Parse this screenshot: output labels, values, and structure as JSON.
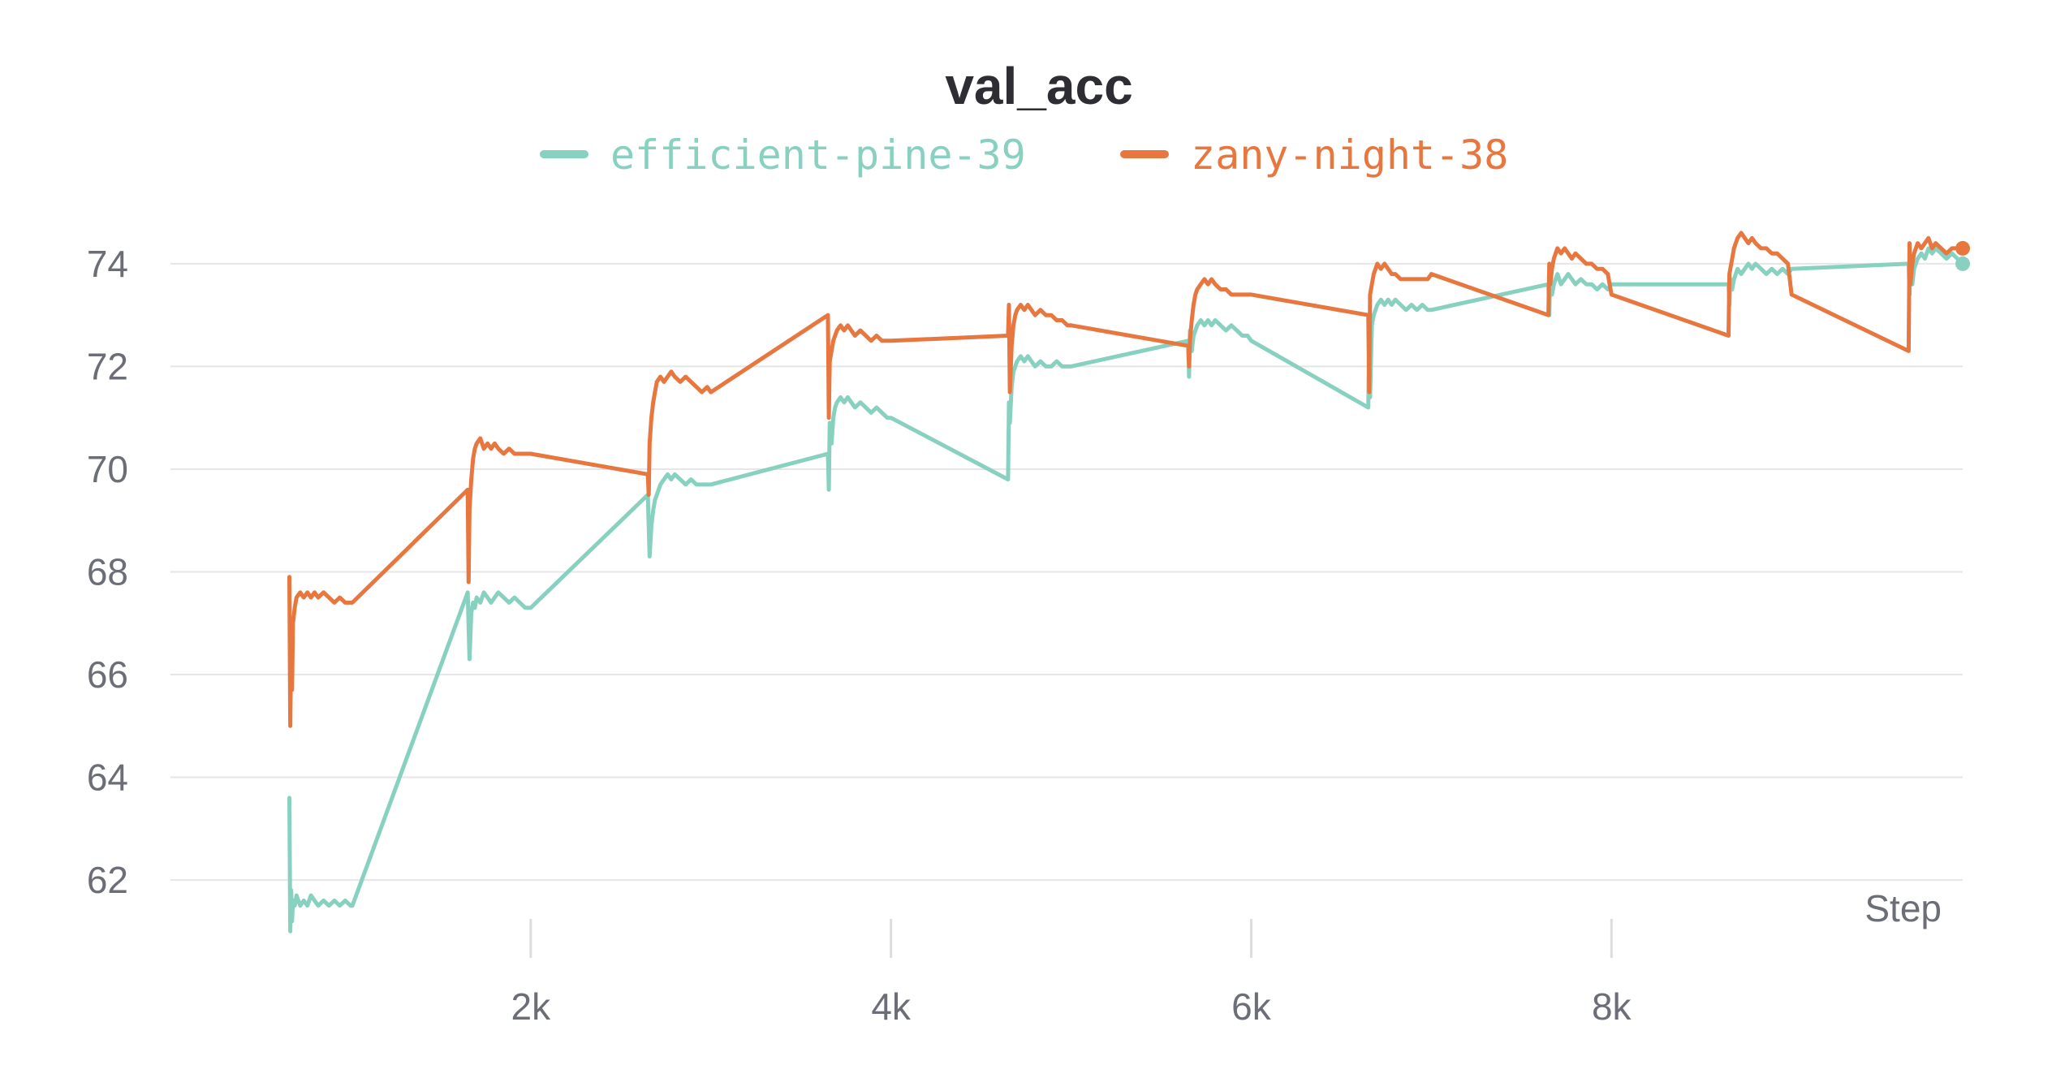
{
  "chart_data": {
    "type": "line",
    "title": "val_acc",
    "xlabel": "Step",
    "ylabel": "",
    "xlim": [
      0,
      9950
    ],
    "ylim": [
      60.8,
      75.5
    ],
    "yticks": [
      62,
      64,
      66,
      68,
      70,
      72,
      74
    ],
    "ytick_labels": [
      "62",
      "64",
      "66",
      "68",
      "70",
      "72",
      "74"
    ],
    "xticks": [
      2000,
      4000,
      6000,
      8000
    ],
    "xtick_labels": [
      "2k",
      "4k",
      "6k",
      "8k"
    ],
    "grid": true,
    "legend_position": "top",
    "series": [
      {
        "name": "efficient-pine-39",
        "color": "#88d1c0",
        "x": [
          660,
          665,
          670,
          675,
          680,
          690,
          700,
          720,
          740,
          760,
          780,
          800,
          820,
          850,
          880,
          910,
          940,
          970,
          1000,
          1010,
          1650,
          1660,
          1670,
          1680,
          1690,
          1700,
          1720,
          1740,
          1760,
          1780,
          1800,
          1820,
          1850,
          1880,
          1910,
          1940,
          1970,
          2000,
          2650,
          2660,
          2670,
          2680,
          2690,
          2700,
          2720,
          2740,
          2760,
          2780,
          2800,
          2830,
          2860,
          2890,
          2920,
          2950,
          2980,
          3000,
          3650,
          3655,
          3660,
          3670,
          3680,
          3690,
          3700,
          3720,
          3740,
          3760,
          3780,
          3800,
          3830,
          3860,
          3890,
          3920,
          3950,
          3980,
          4000,
          4650,
          4655,
          4660,
          4670,
          4680,
          4690,
          4700,
          4720,
          4740,
          4760,
          4780,
          4800,
          4830,
          4860,
          4890,
          4920,
          4950,
          4980,
          5000,
          5650,
          5655,
          5660,
          5670,
          5680,
          5690,
          5700,
          5720,
          5740,
          5760,
          5780,
          5800,
          5830,
          5860,
          5890,
          5920,
          5950,
          5980,
          6000,
          6650,
          6655,
          6660,
          6670,
          6680,
          6690,
          6700,
          6720,
          6740,
          6760,
          6780,
          6800,
          6830,
          6860,
          6890,
          6920,
          6950,
          6980,
          7000,
          7650,
          7655,
          7660,
          7670,
          7680,
          7690,
          7700,
          7720,
          7740,
          7760,
          7780,
          7800,
          7830,
          7860,
          7890,
          7920,
          7950,
          7980,
          8000,
          8650,
          8655,
          8660,
          8670,
          8680,
          8690,
          8700,
          8720,
          8740,
          8760,
          8780,
          8800,
          8830,
          8860,
          8890,
          8920,
          8950,
          8980,
          9000,
          9650,
          9655,
          9660,
          9670,
          9680,
          9690,
          9700,
          9720,
          9740,
          9760,
          9780,
          9800,
          9830,
          9860,
          9890,
          9920,
          9950
        ],
        "y": [
          63.6,
          61.0,
          61.8,
          61.2,
          61.6,
          61.5,
          61.7,
          61.5,
          61.6,
          61.5,
          61.7,
          61.6,
          61.5,
          61.6,
          61.5,
          61.6,
          61.5,
          61.6,
          61.5,
          61.5,
          67.6,
          66.3,
          67.2,
          67.4,
          67.3,
          67.5,
          67.4,
          67.6,
          67.5,
          67.4,
          67.5,
          67.6,
          67.5,
          67.4,
          67.5,
          67.4,
          67.3,
          67.3,
          69.5,
          68.3,
          68.9,
          69.2,
          69.4,
          69.5,
          69.7,
          69.8,
          69.9,
          69.8,
          69.9,
          69.8,
          69.7,
          69.8,
          69.7,
          69.7,
          69.7,
          69.7,
          70.3,
          69.6,
          70.9,
          70.5,
          71.0,
          71.2,
          71.3,
          71.4,
          71.3,
          71.4,
          71.3,
          71.2,
          71.3,
          71.2,
          71.1,
          71.2,
          71.1,
          71.0,
          71.0,
          69.8,
          71.3,
          70.9,
          71.6,
          71.9,
          72.0,
          72.1,
          72.2,
          72.1,
          72.2,
          72.1,
          72.0,
          72.1,
          72.0,
          72.0,
          72.1,
          72.0,
          72.0,
          72.0,
          72.5,
          71.8,
          72.7,
          72.3,
          72.6,
          72.7,
          72.8,
          72.9,
          72.8,
          72.9,
          72.8,
          72.9,
          72.8,
          72.7,
          72.8,
          72.7,
          72.6,
          72.6,
          72.5,
          71.2,
          72.7,
          71.4,
          72.8,
          73.0,
          73.1,
          73.2,
          73.3,
          73.2,
          73.3,
          73.2,
          73.3,
          73.2,
          73.1,
          73.2,
          73.1,
          73.2,
          73.1,
          73.1,
          73.6,
          73.0,
          73.9,
          73.4,
          73.6,
          73.7,
          73.8,
          73.6,
          73.7,
          73.8,
          73.7,
          73.6,
          73.7,
          73.6,
          73.6,
          73.5,
          73.6,
          73.5,
          73.6,
          73.6,
          73.2,
          73.7,
          73.5,
          73.7,
          73.8,
          73.9,
          73.8,
          73.9,
          74.0,
          73.9,
          74.0,
          73.9,
          73.8,
          73.9,
          73.8,
          73.9,
          73.8,
          73.9,
          74.0,
          73.4,
          74.1,
          73.6,
          73.9,
          74.0,
          74.1,
          74.2,
          74.1,
          74.3,
          74.2,
          74.3,
          74.2,
          74.1,
          74.2,
          74.1,
          74.0
        ]
      },
      {
        "name": "zany-night-38",
        "color": "#e8773f",
        "x": [
          660,
          665,
          670,
          675,
          680,
          690,
          700,
          720,
          740,
          760,
          780,
          800,
          820,
          850,
          880,
          910,
          940,
          970,
          1000,
          1010,
          1650,
          1655,
          1660,
          1670,
          1680,
          1690,
          1700,
          1720,
          1740,
          1760,
          1780,
          1800,
          1820,
          1850,
          1880,
          1910,
          1940,
          1970,
          2000,
          2650,
          2655,
          2660,
          2670,
          2680,
          2690,
          2700,
          2720,
          2740,
          2760,
          2780,
          2800,
          2830,
          2860,
          2890,
          2920,
          2950,
          2980,
          3000,
          3650,
          3655,
          3660,
          3670,
          3680,
          3690,
          3700,
          3720,
          3740,
          3760,
          3780,
          3800,
          3830,
          3860,
          3890,
          3920,
          3950,
          3980,
          4000,
          4650,
          4655,
          4660,
          4670,
          4680,
          4690,
          4700,
          4720,
          4740,
          4760,
          4780,
          4800,
          4830,
          4860,
          4890,
          4920,
          4950,
          4980,
          5000,
          5650,
          5655,
          5660,
          5670,
          5680,
          5690,
          5700,
          5720,
          5740,
          5760,
          5780,
          5800,
          5830,
          5860,
          5890,
          5920,
          5950,
          5980,
          6000,
          6650,
          6655,
          6660,
          6670,
          6680,
          6690,
          6700,
          6720,
          6740,
          6760,
          6780,
          6800,
          6830,
          6860,
          6890,
          6920,
          6950,
          6980,
          7000,
          7650,
          7655,
          7660,
          7670,
          7680,
          7690,
          7700,
          7720,
          7740,
          7760,
          7780,
          7800,
          7830,
          7860,
          7890,
          7920,
          7950,
          7980,
          8000,
          8650,
          8655,
          8660,
          8670,
          8680,
          8690,
          8700,
          8720,
          8740,
          8760,
          8780,
          8800,
          8830,
          8860,
          8890,
          8920,
          8950,
          8980,
          9000,
          9650,
          9655,
          9660,
          9670,
          9680,
          9690,
          9700,
          9720,
          9740,
          9760,
          9780,
          9800,
          9830,
          9860,
          9890,
          9920,
          9950
        ],
        "y": [
          67.9,
          65.0,
          66.6,
          65.7,
          67.0,
          67.3,
          67.5,
          67.6,
          67.5,
          67.6,
          67.5,
          67.6,
          67.5,
          67.6,
          67.5,
          67.4,
          67.5,
          67.4,
          67.4,
          67.4,
          69.6,
          67.8,
          69.2,
          69.8,
          70.2,
          70.4,
          70.5,
          70.6,
          70.4,
          70.5,
          70.4,
          70.5,
          70.4,
          70.3,
          70.4,
          70.3,
          70.3,
          70.3,
          70.3,
          69.9,
          69.5,
          70.5,
          71.0,
          71.3,
          71.5,
          71.7,
          71.8,
          71.7,
          71.8,
          71.9,
          71.8,
          71.7,
          71.8,
          71.7,
          71.6,
          71.5,
          71.6,
          71.5,
          73.0,
          71.0,
          72.1,
          72.3,
          72.5,
          72.6,
          72.7,
          72.8,
          72.7,
          72.8,
          72.7,
          72.6,
          72.7,
          72.6,
          72.5,
          72.6,
          72.5,
          72.5,
          72.5,
          72.6,
          73.2,
          71.5,
          72.4,
          72.8,
          73.0,
          73.1,
          73.2,
          73.1,
          73.2,
          73.1,
          73.0,
          73.1,
          73.0,
          73.0,
          72.9,
          72.9,
          72.8,
          72.8,
          72.4,
          72.0,
          72.5,
          72.9,
          73.2,
          73.4,
          73.5,
          73.6,
          73.7,
          73.6,
          73.7,
          73.6,
          73.5,
          73.5,
          73.4,
          73.4,
          73.4,
          73.4,
          73.4,
          73.0,
          71.5,
          73.4,
          73.6,
          73.8,
          73.9,
          74.0,
          73.9,
          74.0,
          73.9,
          73.8,
          73.8,
          73.7,
          73.7,
          73.7,
          73.7,
          73.7,
          73.7,
          73.8,
          73.0,
          74.0,
          73.6,
          73.9,
          74.1,
          74.2,
          74.3,
          74.2,
          74.3,
          74.2,
          74.1,
          74.2,
          74.1,
          74.0,
          74.0,
          73.9,
          73.9,
          73.8,
          73.4,
          72.6,
          73.8,
          73.9,
          74.1,
          74.3,
          74.4,
          74.5,
          74.6,
          74.5,
          74.4,
          74.5,
          74.4,
          74.3,
          74.3,
          74.2,
          74.2,
          74.1,
          74.0,
          73.4,
          72.3,
          74.4,
          73.6,
          74.0,
          74.2,
          74.3,
          74.4,
          74.3,
          74.4,
          74.5,
          74.3,
          74.4,
          74.3,
          74.2,
          74.3,
          74.3,
          74.3
        ]
      }
    ]
  }
}
